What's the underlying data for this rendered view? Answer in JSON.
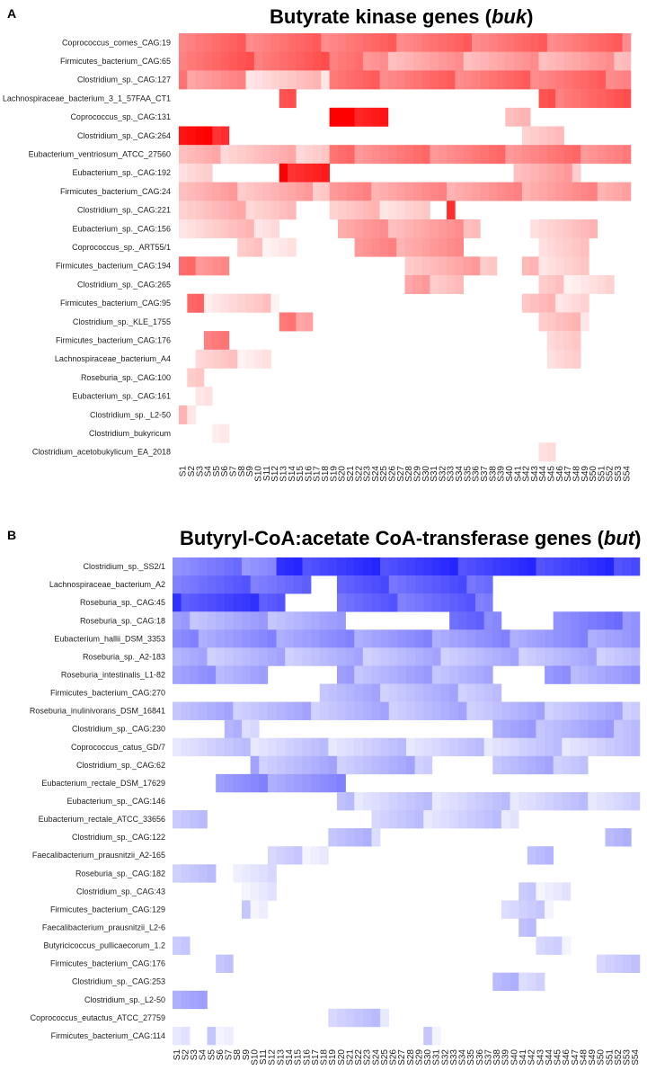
{
  "chart_data": [
    {
      "panel": "A",
      "type": "heatmap",
      "title": "Butyrate kinase genes (buk)",
      "title_main": "Butyrate kinase genes (",
      "title_italic": "buk",
      "title_end": ")",
      "color": "#ff0000",
      "columns": [
        "S1",
        "S2",
        "S3",
        "S4",
        "S5",
        "S6",
        "S7",
        "S8",
        "S9",
        "S10",
        "S11",
        "S12",
        "S13",
        "S14",
        "S15",
        "S16",
        "S17",
        "S18",
        "S19",
        "S20",
        "S21",
        "S22",
        "S23",
        "S24",
        "S25",
        "S26",
        "S27",
        "S28",
        "S29",
        "S30",
        "S31",
        "S32",
        "S33",
        "S34",
        "S35",
        "S36",
        "S37",
        "S38",
        "S39",
        "S40",
        "S41",
        "S42",
        "S43",
        "S44",
        "S45",
        "S46",
        "S47",
        "S48",
        "S49",
        "S50",
        "S51",
        "S52",
        "S53",
        "S54"
      ],
      "rows": [
        {
          "label": "Coprococcus_comes_CAG:19",
          "cells": [
            [
              1,
              54,
              0.55
            ]
          ]
        },
        {
          "label": "Firmicutes_bacterium_CAG:65",
          "cells": [
            [
              1,
              22,
              0.6
            ],
            [
              23,
              54,
              0.35
            ]
          ]
        },
        {
          "label": "Clostridium_sp._CAG:127",
          "cells": [
            [
              1,
              8,
              0.45
            ],
            [
              9,
              18,
              0.2
            ],
            [
              19,
              54,
              0.55
            ]
          ]
        },
        {
          "label": "Lachnospiraceae_bacterium_3_1_57FAA_CT1",
          "cells": [
            [
              13,
              14,
              0.75
            ],
            [
              44,
              54,
              0.6
            ]
          ]
        },
        {
          "label": "Coprococcus_sp._CAG:131",
          "cells": [
            [
              19,
              25,
              0.95
            ],
            [
              40,
              42,
              0.3
            ]
          ]
        },
        {
          "label": "Clostridium_sp._CAG:264",
          "cells": [
            [
              1,
              6,
              0.9
            ],
            [
              42,
              46,
              0.2
            ]
          ]
        },
        {
          "label": "Eubacterium_ventriosum_ATCC_27560",
          "cells": [
            [
              1,
              18,
              0.25
            ],
            [
              19,
              54,
              0.5
            ]
          ]
        },
        {
          "label": "Eubacterium_sp._CAG:192",
          "cells": [
            [
              1,
              4,
              0.15
            ],
            [
              13,
              18,
              0.9
            ],
            [
              41,
              48,
              0.3
            ]
          ]
        },
        {
          "label": "Firmicutes_bacterium_CAG:24",
          "cells": [
            [
              1,
              18,
              0.3
            ],
            [
              19,
              54,
              0.4
            ]
          ]
        },
        {
          "label": "Clostridium_sp._CAG:221",
          "cells": [
            [
              1,
              14,
              0.25
            ],
            [
              19,
              30,
              0.2
            ],
            [
              33,
              33,
              0.9
            ]
          ]
        },
        {
          "label": "Eubacterium_sp._CAG:156",
          "cells": [
            [
              1,
              12,
              0.2
            ],
            [
              20,
              36,
              0.35
            ],
            [
              43,
              50,
              0.2
            ]
          ]
        },
        {
          "label": "Coprococcus_sp._ART55/1",
          "cells": [
            [
              8,
              14,
              0.15
            ],
            [
              22,
              34,
              0.4
            ],
            [
              44,
              49,
              0.2
            ]
          ]
        },
        {
          "label": "Firmicutes_bacterium_CAG:194",
          "cells": [
            [
              1,
              6,
              0.5
            ],
            [
              28,
              38,
              0.3
            ],
            [
              42,
              49,
              0.2
            ]
          ]
        },
        {
          "label": "Clostridium_sp._CAG:265",
          "cells": [
            [
              28,
              34,
              0.3
            ],
            [
              44,
              52,
              0.15
            ]
          ]
        },
        {
          "label": "Firmicutes_bacterium_CAG:95",
          "cells": [
            [
              2,
              3,
              0.55
            ],
            [
              4,
              12,
              0.15
            ],
            [
              42,
              49,
              0.2
            ]
          ]
        },
        {
          "label": "Clostridium_sp._KLE_1755",
          "cells": [
            [
              13,
              16,
              0.45
            ],
            [
              44,
              49,
              0.2
            ]
          ]
        },
        {
          "label": "Firmicutes_bacterium_CAG:176",
          "cells": [
            [
              4,
              6,
              0.45
            ],
            [
              45,
              48,
              0.15
            ]
          ]
        },
        {
          "label": "Lachnospiraceae_bacterium_A4",
          "cells": [
            [
              3,
              11,
              0.15
            ],
            [
              45,
              48,
              0.15
            ]
          ]
        },
        {
          "label": "Roseburia_sp._CAG:100",
          "cells": [
            [
              2,
              3,
              0.25
            ]
          ]
        },
        {
          "label": "Eubacterium_sp._CAG:161",
          "cells": [
            [
              3,
              4,
              0.15
            ]
          ]
        },
        {
          "label": "Clostridium_sp._L2-50",
          "cells": [
            [
              1,
              2,
              0.2
            ]
          ]
        },
        {
          "label": "Clostridium_bukyricum",
          "cells": [
            [
              5,
              6,
              0.12
            ]
          ]
        },
        {
          "label": "Clostridium_acetobukylicum_EA_2018",
          "cells": [
            [
              44,
              45,
              0.12
            ]
          ]
        }
      ]
    },
    {
      "panel": "B",
      "type": "heatmap",
      "title": "Butyryl-CoA:acetate CoA-transferase genes (but)",
      "title_main": "Butyryl-CoA:acetate CoA-transferase genes (",
      "title_italic": "but",
      "title_end": ")",
      "color": "#1a1aff",
      "columns": [
        "S1",
        "S2",
        "S3",
        "S4",
        "S5",
        "S6",
        "S7",
        "S8",
        "S9",
        "S10",
        "S11",
        "S12",
        "S13",
        "S14",
        "S15",
        "S16",
        "S17",
        "S18",
        "S19",
        "S20",
        "S21",
        "S22",
        "S23",
        "S24",
        "S25",
        "S26",
        "S27",
        "S28",
        "S29",
        "S30",
        "S31",
        "S32",
        "S33",
        "S34",
        "S35",
        "S36",
        "S37",
        "S38",
        "S39",
        "S40",
        "S41",
        "S42",
        "S43",
        "S44",
        "S45",
        "S46",
        "S47",
        "S48",
        "S49",
        "S50",
        "S51",
        "S52",
        "S53",
        "S54"
      ],
      "rows": [
        {
          "label": "Clostridium_sp._SS2/1",
          "cells": [
            [
              1,
              12,
              0.55
            ],
            [
              13,
              54,
              0.85
            ]
          ]
        },
        {
          "label": "Lachnospiraceae_bacterium_A2",
          "cells": [
            [
              1,
              16,
              0.65
            ],
            [
              20,
              37,
              0.7
            ]
          ]
        },
        {
          "label": "Roseburia_sp._CAG:45",
          "cells": [
            [
              1,
              13,
              0.8
            ],
            [
              20,
              37,
              0.65
            ]
          ]
        },
        {
          "label": "Roseburia_sp._CAG:18",
          "cells": [
            [
              1,
              20,
              0.35
            ],
            [
              33,
              38,
              0.6
            ],
            [
              45,
              54,
              0.55
            ]
          ]
        },
        {
          "label": "Eubacterium_hallii_DSM_3353",
          "cells": [
            [
              1,
              54,
              0.45
            ]
          ]
        },
        {
          "label": "Roseburia_sp._A2-183",
          "cells": [
            [
              1,
              54,
              0.3
            ]
          ]
        },
        {
          "label": "Roseburia_intestinalis_L1-82",
          "cells": [
            [
              1,
              11,
              0.4
            ],
            [
              20,
              37,
              0.35
            ],
            [
              44,
              54,
              0.4
            ]
          ]
        },
        {
          "label": "Firmicutes_bacterium_CAG:270",
          "cells": [
            [
              18,
              38,
              0.3
            ]
          ]
        },
        {
          "label": "Roseburia_inulinivorans_DSM_16841",
          "cells": [
            [
              1,
              54,
              0.3
            ]
          ]
        },
        {
          "label": "Clostridium_sp._CAG:230",
          "cells": [
            [
              7,
              10,
              0.25
            ],
            [
              38,
              54,
              0.35
            ]
          ]
        },
        {
          "label": "Coprococcus_catus_GD/7",
          "cells": [
            [
              1,
              54,
              0.2
            ]
          ]
        },
        {
          "label": "Clostridium_sp._CAG:62",
          "cells": [
            [
              10,
              30,
              0.3
            ],
            [
              38,
              48,
              0.3
            ]
          ]
        },
        {
          "label": "Eubacterium_rectale_DSM_17629",
          "cells": [
            [
              6,
              20,
              0.45
            ]
          ]
        },
        {
          "label": "Eubacterium_sp._CAG:146",
          "cells": [
            [
              20,
              54,
              0.2
            ]
          ]
        },
        {
          "label": "Eubacterium_rectale_ATCC_33656",
          "cells": [
            [
              1,
              4,
              0.2
            ],
            [
              24,
              40,
              0.2
            ]
          ]
        },
        {
          "label": "Clostridium_sp._CAG:122",
          "cells": [
            [
              19,
              24,
              0.25
            ],
            [
              51,
              53,
              0.35
            ]
          ]
        },
        {
          "label": "Faecalibacterium_prausnitzii_A2-165",
          "cells": [
            [
              12,
              18,
              0.15
            ],
            [
              42,
              44,
              0.35
            ]
          ]
        },
        {
          "label": "Roseburia_sp._CAG:182",
          "cells": [
            [
              1,
              5,
              0.25
            ],
            [
              8,
              12,
              0.12
            ]
          ]
        },
        {
          "label": "Clostridium_sp._CAG:43",
          "cells": [
            [
              9,
              12,
              0.15
            ],
            [
              41,
              46,
              0.15
            ]
          ]
        },
        {
          "label": "Firmicutes_bacterium_CAG:129",
          "cells": [
            [
              9,
              11,
              0.15
            ],
            [
              39,
              44,
              0.15
            ]
          ]
        },
        {
          "label": "Faecalibacterium_prausnitzii_L2-6",
          "cells": [
            [
              41,
              42,
              0.3
            ]
          ]
        },
        {
          "label": "Butyricicoccus_pullicaecorum_1.2",
          "cells": [
            [
              1,
              2,
              0.15
            ],
            [
              43,
              46,
              0.12
            ]
          ]
        },
        {
          "label": "Firmicutes_bacterium_CAG:176",
          "cells": [
            [
              6,
              7,
              0.3
            ],
            [
              50,
              54,
              0.2
            ]
          ]
        },
        {
          "label": "Clostridium_sp._CAG:253",
          "cells": [
            [
              38,
              43,
              0.25
            ]
          ]
        },
        {
          "label": "Clostridium_sp._L2-50",
          "cells": [
            [
              1,
              4,
              0.35
            ]
          ]
        },
        {
          "label": "Coprococcus_eutactus_ATCC_27759",
          "cells": [
            [
              19,
              25,
              0.2
            ]
          ]
        },
        {
          "label": "Firmicutes_bacterium_CAG:114",
          "cells": [
            [
              1,
              2,
              0.15
            ],
            [
              5,
              7,
              0.15
            ],
            [
              30,
              31,
              0.15
            ]
          ]
        }
      ]
    }
  ]
}
